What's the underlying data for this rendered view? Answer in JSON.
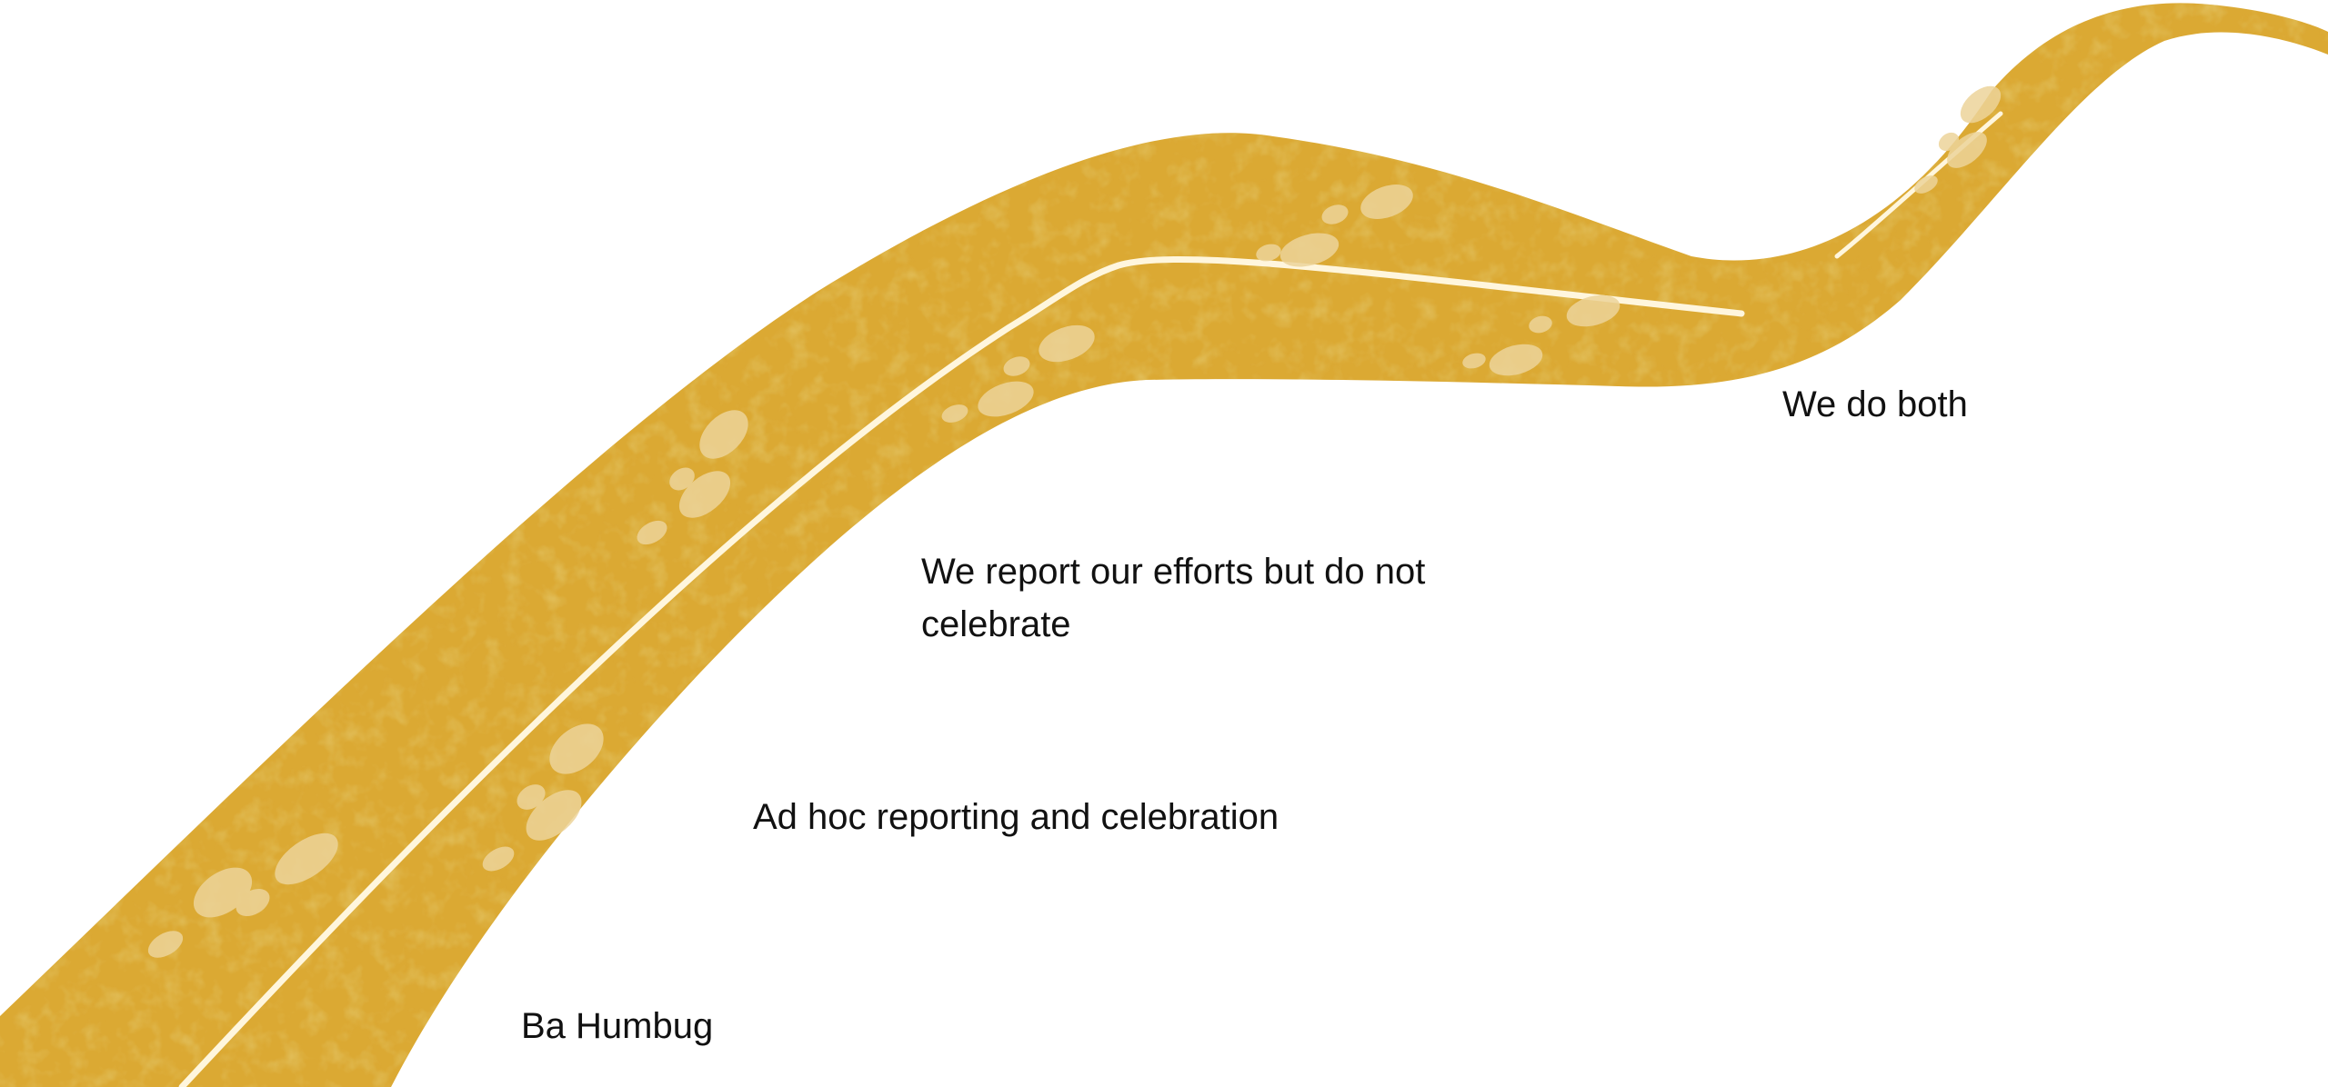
{
  "stages": [
    {
      "id": "stage-1",
      "label": "Ba Humbug"
    },
    {
      "id": "stage-2",
      "label": "Ad hoc reporting and celebration"
    },
    {
      "id": "stage-3",
      "label_line1": "We report our efforts but do not",
      "label_line2": "celebrate"
    },
    {
      "id": "stage-4",
      "label": "We do both"
    }
  ],
  "colors": {
    "road": "#DBA933",
    "road_texture": "#C9962A",
    "road_light_patches": "#EDD49A",
    "centerline": "#FFF6DD",
    "text": "#111111",
    "background": "#FFFFFF"
  }
}
